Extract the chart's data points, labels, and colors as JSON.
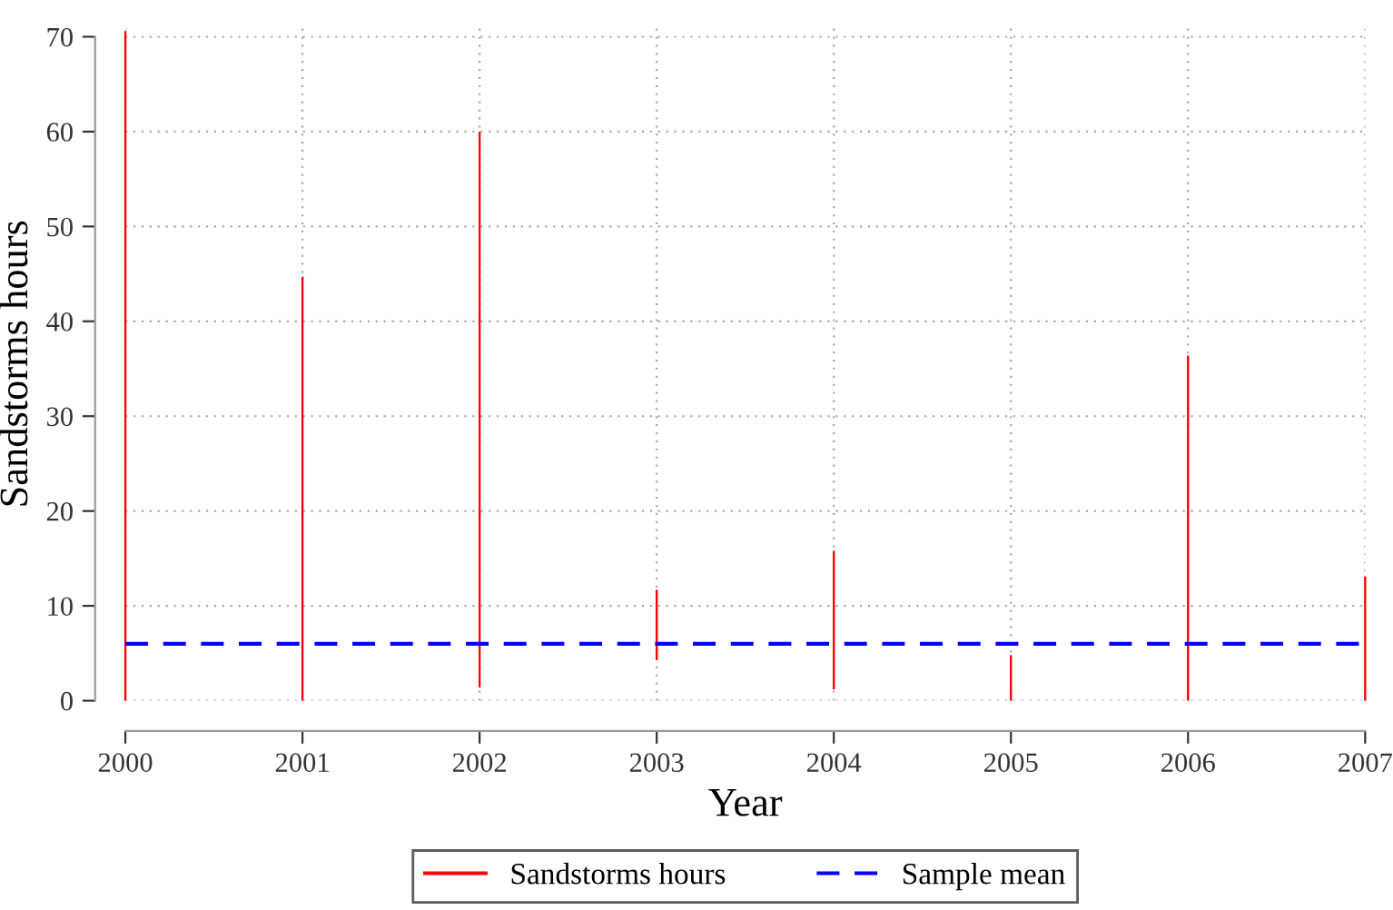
{
  "chart_data": {
    "type": "bar",
    "xlabel": "Year",
    "ylabel": "Sandstorms hours",
    "x": [
      2000,
      2001,
      2002,
      2003,
      2004,
      2005,
      2006,
      2007
    ],
    "series": [
      {
        "name": "Sandstorms hours",
        "color": "#ff0000",
        "values": [
          70.6,
          44.7,
          58.6,
          7.4,
          14.6,
          4.8,
          36.4,
          13.1
        ],
        "base": [
          0,
          0,
          1.4,
          4.3,
          1.2,
          0,
          0,
          0
        ]
      }
    ],
    "ref_lines": [
      {
        "axis": "y",
        "value": 6,
        "label": "Sample mean",
        "color": "#0000ff",
        "line_style": "dashed"
      }
    ],
    "xlim": [
      2000,
      2007
    ],
    "xticks": [
      2000,
      2001,
      2002,
      2003,
      2004,
      2005,
      2006,
      2007
    ],
    "ylim": [
      0,
      71
    ],
    "yticks": [
      0,
      10,
      20,
      30,
      40,
      50,
      60,
      70
    ],
    "grid": true,
    "legend": "bottom"
  }
}
